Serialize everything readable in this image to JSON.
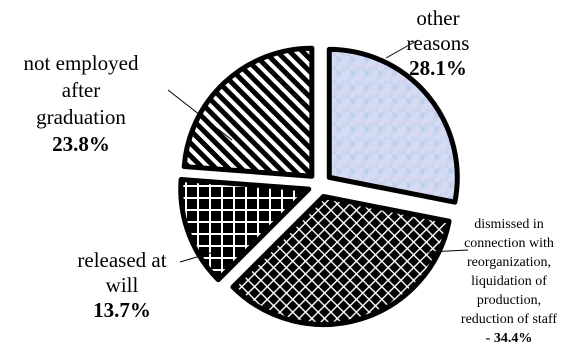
{
  "chart_data": {
    "type": "pie",
    "title": "",
    "slices": [
      {
        "label_lines": [
          "other",
          "reasons"
        ],
        "value": 28.1,
        "percent_label": "28.1%",
        "fill": "#c9d4ee",
        "pattern": "mottled"
      },
      {
        "label_lines": [
          "dismissed in",
          "connection with",
          "reorganization,",
          "liquidation of",
          "production,",
          "reduction of staff"
        ],
        "value": 34.4,
        "percent_label": "- 34.4%",
        "fill": "#000000",
        "pattern": "diamond-lattice"
      },
      {
        "label_lines": [
          "released at",
          "will"
        ],
        "value": 13.7,
        "percent_label": "13.7%",
        "fill": "#000000",
        "pattern": "cross-hatch"
      },
      {
        "label_lines": [
          "not employed",
          "after",
          "graduation"
        ],
        "value": 23.8,
        "percent_label": "23.8%",
        "fill": "#000000",
        "pattern": "diagonal-stripes"
      }
    ],
    "exploded": true,
    "legend": "none"
  }
}
